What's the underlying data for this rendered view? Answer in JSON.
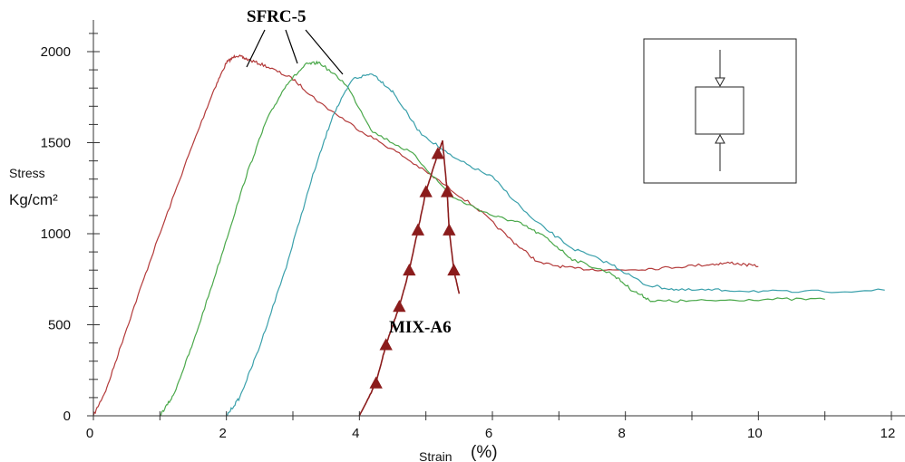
{
  "chart_data": {
    "type": "line",
    "xlabel": "Strain",
    "xunit": "(%)",
    "ylabel": "Stress",
    "yunit": "Kg/cm²",
    "xlim": [
      0,
      12
    ],
    "ylim": [
      0,
      2000
    ],
    "x_ticks": [
      0,
      2,
      4,
      6,
      8,
      10,
      12
    ],
    "y_ticks": [
      0,
      500,
      1000,
      1500,
      2000
    ],
    "grid": false,
    "legend": "none",
    "annotations": [
      {
        "text": "SFRC-5",
        "points_to_series": [
          "SFRC-5 (red)",
          "SFRC-5 (green)",
          "SFRC-5 (teal)"
        ]
      },
      {
        "text": "MIX-A6",
        "points_to_series": [
          "MIX-A6"
        ]
      }
    ],
    "series": [
      {
        "color": "#b33a3a",
        "x": [
          0.0,
          0.2,
          0.5,
          0.9,
          1.4,
          1.8,
          2.0,
          2.15,
          2.3,
          2.6,
          3.0,
          3.4,
          4.0,
          4.6,
          5.2,
          5.8,
          6.3,
          6.7,
          7.2,
          7.8,
          8.5,
          9.2,
          9.6,
          10.0
        ],
        "y": [
          0,
          150,
          480,
          900,
          1400,
          1780,
          1940,
          1980,
          1960,
          1920,
          1850,
          1720,
          1570,
          1440,
          1290,
          1130,
          960,
          840,
          810,
          800,
          810,
          830,
          840,
          820
        ]
      },
      {
        "color": "#4aa84a",
        "x": [
          1.0,
          1.2,
          1.5,
          1.9,
          2.3,
          2.6,
          2.9,
          3.2,
          3.4,
          3.8,
          4.2,
          4.8,
          5.4,
          6.0,
          6.4,
          6.8,
          7.2,
          7.8,
          8.1,
          8.4,
          9.0,
          10.0,
          11.0
        ],
        "y": [
          0,
          110,
          400,
          850,
          1320,
          1620,
          1820,
          1930,
          1940,
          1820,
          1560,
          1440,
          1200,
          1100,
          1060,
          980,
          860,
          780,
          690,
          630,
          630,
          640,
          640
        ]
      },
      {
        "color": "#3aa0ab",
        "x": [
          2.0,
          2.2,
          2.5,
          2.9,
          3.3,
          3.6,
          3.9,
          4.2,
          4.5,
          4.9,
          5.4,
          6.0,
          6.6,
          7.2,
          7.8,
          8.3,
          8.8,
          9.5,
          10.5,
          11.9
        ],
        "y": [
          0,
          100,
          380,
          820,
          1320,
          1650,
          1850,
          1880,
          1780,
          1560,
          1420,
          1310,
          1080,
          920,
          830,
          720,
          690,
          690,
          680,
          690
        ]
      },
      {
        "name": "MIX-A6",
        "color": "#8b1c1c",
        "marker": "triangle",
        "x": [
          4.25,
          4.4,
          4.6,
          4.75,
          4.88,
          5.0,
          5.18,
          5.32,
          5.35,
          5.42
        ],
        "y": [
          180,
          390,
          600,
          800,
          1020,
          1230,
          1440,
          1230,
          1020,
          800
        ],
        "tail_x": [
          4.0,
          4.25,
          4.4,
          4.6,
          4.75,
          4.88,
          5.0,
          5.18,
          5.25,
          5.32,
          5.35,
          5.42,
          5.5
        ],
        "tail_y": [
          0,
          180,
          390,
          600,
          800,
          1020,
          1230,
          1440,
          1510,
          1230,
          1020,
          800,
          670
        ]
      }
    ]
  }
}
